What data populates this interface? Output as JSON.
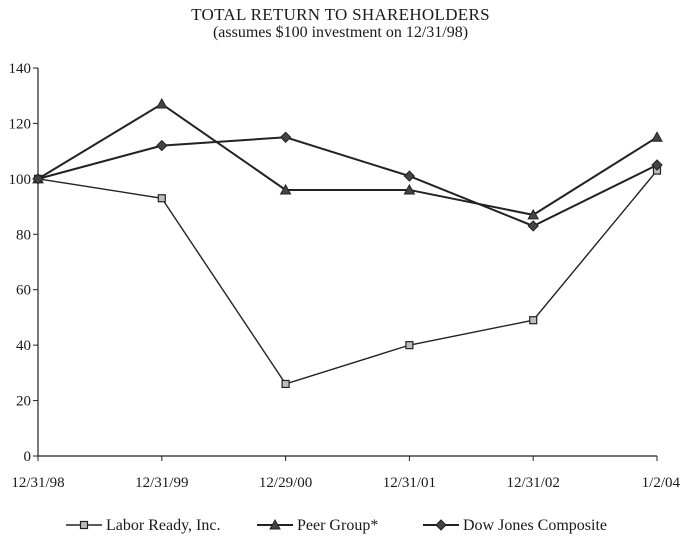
{
  "chart_data": {
    "type": "line",
    "title": "TOTAL RETURN TO SHAREHOLDERS",
    "subtitle": "(assumes $100 investment on 12/31/98)",
    "xlabel": "",
    "ylabel": "",
    "categories": [
      "12/31/98",
      "12/31/99",
      "12/29/00",
      "12/31/01",
      "12/31/02",
      "1/2/04"
    ],
    "ylim": [
      0,
      140
    ],
    "yticks": [
      0,
      20,
      40,
      60,
      80,
      100,
      120,
      140
    ],
    "grid": false,
    "legend_position": "bottom",
    "series": [
      {
        "name": "Labor Ready, Inc.",
        "marker": "square",
        "values": [
          100,
          93,
          26,
          40,
          49,
          103
        ]
      },
      {
        "name": "Peer Group*",
        "marker": "triangle",
        "values": [
          100,
          127,
          96,
          96,
          87,
          115
        ]
      },
      {
        "name": "Dow Jones Composite",
        "marker": "diamond",
        "values": [
          100,
          112,
          115,
          101,
          83,
          105
        ]
      }
    ]
  },
  "colors": {
    "line": "#222222",
    "square_fill": "#bdbdbd",
    "marker_fill": "#444444"
  }
}
